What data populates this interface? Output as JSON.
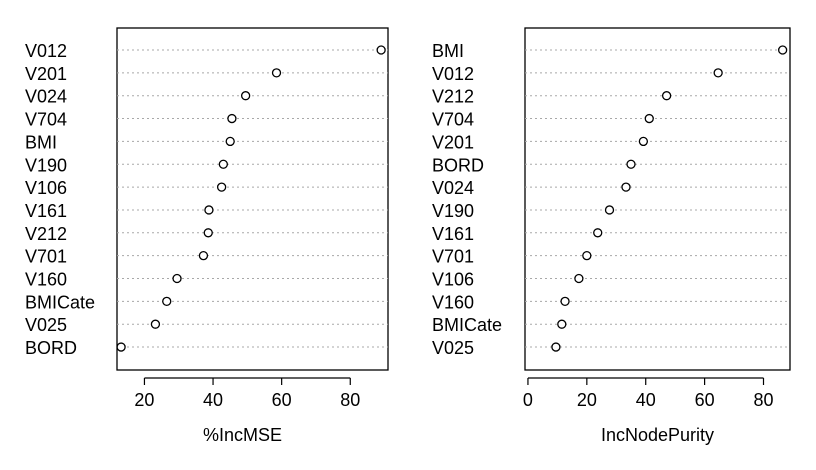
{
  "chart_data": [
    {
      "type": "scatter",
      "subtype": "dotchart",
      "xlabel": "%IncMSE",
      "xlim": [
        12,
        91
      ],
      "xticks": [
        20,
        40,
        60,
        80
      ],
      "grid": "dotted horizontal lines",
      "categories": [
        "V012",
        "V201",
        "V024",
        "V704",
        "BMI",
        "V190",
        "V106",
        "V161",
        "V212",
        "V701",
        "V160",
        "BMICate",
        "V025",
        "BORD"
      ],
      "values": [
        89.0,
        58.5,
        49.5,
        45.5,
        45.0,
        43.0,
        42.5,
        38.8,
        38.6,
        37.2,
        29.5,
        26.5,
        23.2,
        13.2
      ]
    },
    {
      "type": "scatter",
      "subtype": "dotchart",
      "xlabel": "IncNodePurity",
      "xlim": [
        -1,
        89
      ],
      "xticks": [
        0,
        20,
        40,
        60,
        80
      ],
      "grid": "dotted horizontal lines",
      "categories": [
        "BMI",
        "V012",
        "V212",
        "V704",
        "V201",
        "BORD",
        "V024",
        "V190",
        "V161",
        "V701",
        "V106",
        "V160",
        "BMICate",
        "V025"
      ],
      "values": [
        86.5,
        64.6,
        47.1,
        41.2,
        39.2,
        35.0,
        33.3,
        27.7,
        23.7,
        20.0,
        17.3,
        12.6,
        11.5,
        9.5
      ]
    }
  ]
}
